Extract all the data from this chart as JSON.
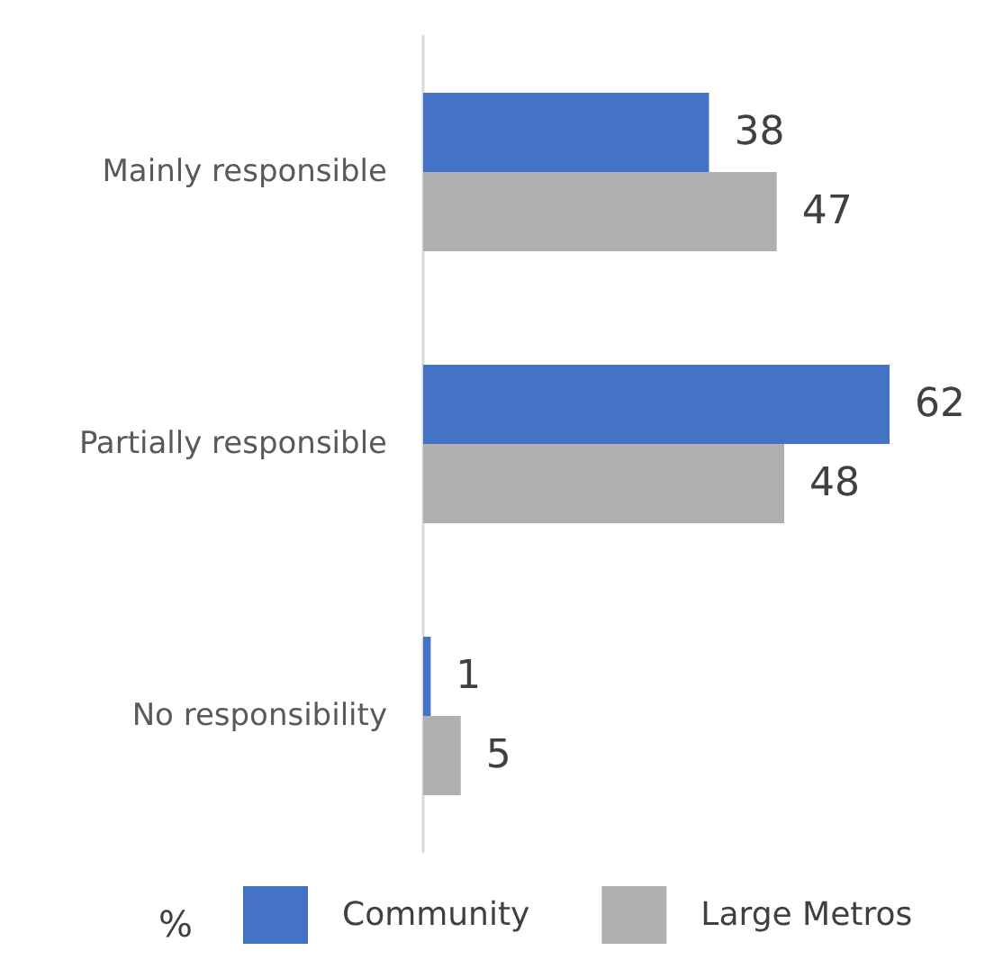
{
  "chart_data": {
    "type": "bar",
    "orientation": "horizontal",
    "data_labels": true,
    "legend": "bottom",
    "legend_title": "%",
    "grid": false,
    "categories": [
      "Mainly responsible",
      "Partially responsible",
      "No responsibility"
    ],
    "series": [
      {
        "name": "Community",
        "color": "#4472c4",
        "values": [
          38,
          62,
          1
        ]
      },
      {
        "name": "Large Metros",
        "color": "#b0b0b0",
        "values": [
          47,
          48,
          5
        ]
      }
    ]
  }
}
